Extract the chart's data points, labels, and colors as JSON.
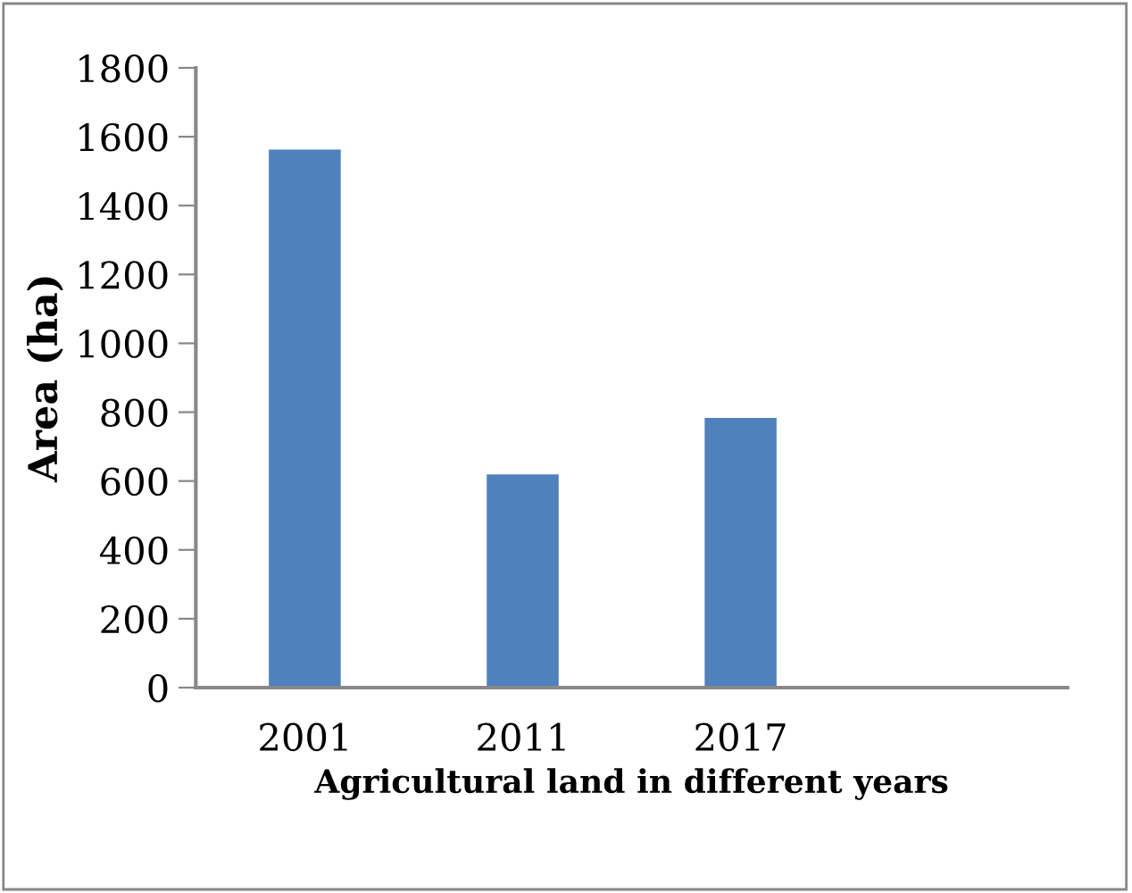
{
  "chart_data": {
    "type": "bar",
    "xlabel": "Agricultural land in different years",
    "ylabel": "Area (ha)",
    "categories": [
      "2001",
      "2011",
      "2017",
      null
    ],
    "values": [
      1563,
      619,
      783,
      null
    ],
    "color": "#4f81bd",
    "ylim": [
      0,
      1800
    ],
    "yticks": [
      0,
      200,
      400,
      600,
      800,
      1000,
      1200,
      1400,
      1600,
      1800
    ],
    "grid": false,
    "legend": false
  }
}
